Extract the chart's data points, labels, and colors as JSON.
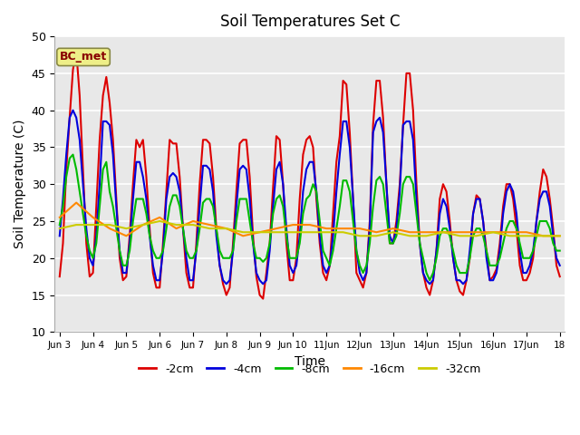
{
  "title": "Soil Temperatures Set C",
  "xlabel": "Time",
  "ylabel": "Soil Temperature (C)",
  "ylim": [
    10,
    50
  ],
  "yticks": [
    10,
    15,
    20,
    25,
    30,
    35,
    40,
    45,
    50
  ],
  "annotation": "BC_met",
  "plot_bg": "#e8e8e8",
  "fig_bg": "#ffffff",
  "legend_entries": [
    "-2cm",
    "-4cm",
    "-8cm",
    "-16cm",
    "-32cm"
  ],
  "legend_colors": [
    "#dd0000",
    "#0000dd",
    "#00bb00",
    "#ff8800",
    "#cccc00"
  ],
  "x_tick_labels": [
    "Jun 3",
    "Jun 4",
    "Jun 5",
    "Jun 6",
    "Jun 7",
    "Jun 8",
    "Jun 9",
    "Jun 10",
    "11Jun",
    "12Jun",
    "13Jun",
    "14Jun",
    "15Jun",
    "16Jun",
    "17Jun",
    "18"
  ],
  "x_tick_positions": [
    0,
    1,
    2,
    3,
    4,
    5,
    6,
    7,
    8,
    9,
    10,
    11,
    12,
    13,
    14,
    15
  ],
  "series": {
    "neg2cm": {
      "color": "#dd0000",
      "lw": 1.5,
      "x": [
        0.0,
        0.1,
        0.2,
        0.3,
        0.4,
        0.5,
        0.6,
        0.7,
        0.8,
        0.9,
        1.0,
        1.1,
        1.2,
        1.3,
        1.4,
        1.5,
        1.6,
        1.7,
        1.8,
        1.9,
        2.0,
        2.1,
        2.2,
        2.3,
        2.4,
        2.5,
        2.6,
        2.7,
        2.8,
        2.9,
        3.0,
        3.1,
        3.2,
        3.3,
        3.4,
        3.5,
        3.6,
        3.7,
        3.8,
        3.9,
        4.0,
        4.1,
        4.2,
        4.3,
        4.4,
        4.5,
        4.6,
        4.7,
        4.8,
        4.9,
        5.0,
        5.1,
        5.2,
        5.3,
        5.4,
        5.5,
        5.6,
        5.7,
        5.8,
        5.9,
        6.0,
        6.1,
        6.2,
        6.3,
        6.4,
        6.5,
        6.6,
        6.7,
        6.8,
        6.9,
        7.0,
        7.1,
        7.2,
        7.3,
        7.4,
        7.5,
        7.6,
        7.7,
        7.8,
        7.9,
        8.0,
        8.1,
        8.2,
        8.3,
        8.4,
        8.5,
        8.6,
        8.7,
        8.8,
        8.9,
        9.0,
        9.1,
        9.2,
        9.3,
        9.4,
        9.5,
        9.6,
        9.7,
        9.8,
        9.9,
        10.0,
        10.1,
        10.2,
        10.3,
        10.4,
        10.5,
        10.6,
        10.7,
        10.8,
        10.9,
        11.0,
        11.1,
        11.2,
        11.3,
        11.4,
        11.5,
        11.6,
        11.7,
        11.8,
        11.9,
        12.0,
        12.1,
        12.2,
        12.3,
        12.4,
        12.5,
        12.6,
        12.7,
        12.8,
        12.9,
        13.0,
        13.1,
        13.2,
        13.3,
        13.4,
        13.5,
        13.6,
        13.7,
        13.8,
        13.9,
        14.0,
        14.1,
        14.2,
        14.3,
        14.4,
        14.5,
        14.6,
        14.7,
        14.8,
        14.9,
        15.0
      ],
      "y": [
        17.5,
        22,
        32,
        39,
        45.5,
        48,
        42,
        32,
        22,
        17.5,
        18,
        27,
        36,
        42,
        44.5,
        41,
        36,
        28,
        20,
        17,
        17.5,
        23,
        30,
        36,
        35,
        36,
        31,
        24,
        18,
        16,
        16,
        22,
        29,
        36,
        35.5,
        35.5,
        31,
        24,
        18,
        16,
        16,
        22,
        30,
        36,
        36,
        35.5,
        31,
        24,
        19,
        16.5,
        15,
        16,
        22,
        29,
        35.5,
        36,
        36,
        31,
        23,
        17.5,
        15,
        14.5,
        18,
        22,
        29.5,
        36.5,
        36,
        30,
        22,
        17,
        17,
        20,
        28,
        34,
        36,
        36.5,
        35,
        28,
        22,
        18,
        17,
        19,
        26,
        33,
        36.5,
        44,
        43.5,
        37,
        28,
        18,
        17,
        16,
        18,
        25,
        38,
        44,
        44,
        39,
        30,
        22,
        22,
        25,
        30,
        38,
        45,
        45,
        40,
        30,
        22,
        18,
        16,
        15,
        17,
        21,
        28,
        30,
        29,
        25,
        20,
        17,
        15.5,
        15,
        17,
        20,
        26,
        28.5,
        28,
        25,
        21,
        17,
        17.5,
        18.5,
        22,
        27,
        30,
        30,
        28,
        24,
        19,
        17,
        17,
        18,
        20,
        25,
        29,
        32,
        31,
        28,
        24,
        19,
        17.5
      ]
    },
    "neg4cm": {
      "color": "#0000dd",
      "lw": 1.5,
      "x": [
        0.0,
        0.1,
        0.2,
        0.3,
        0.4,
        0.5,
        0.6,
        0.7,
        0.8,
        0.9,
        1.0,
        1.1,
        1.2,
        1.3,
        1.4,
        1.5,
        1.6,
        1.7,
        1.8,
        1.9,
        2.0,
        2.1,
        2.2,
        2.3,
        2.4,
        2.5,
        2.6,
        2.7,
        2.8,
        2.9,
        3.0,
        3.1,
        3.2,
        3.3,
        3.4,
        3.5,
        3.6,
        3.7,
        3.8,
        3.9,
        4.0,
        4.1,
        4.2,
        4.3,
        4.4,
        4.5,
        4.6,
        4.7,
        4.8,
        4.9,
        5.0,
        5.1,
        5.2,
        5.3,
        5.4,
        5.5,
        5.6,
        5.7,
        5.8,
        5.9,
        6.0,
        6.1,
        6.2,
        6.3,
        6.4,
        6.5,
        6.6,
        6.7,
        6.8,
        6.9,
        7.0,
        7.1,
        7.2,
        7.3,
        7.4,
        7.5,
        7.6,
        7.7,
        7.8,
        7.9,
        8.0,
        8.1,
        8.2,
        8.3,
        8.4,
        8.5,
        8.6,
        8.7,
        8.8,
        8.9,
        9.0,
        9.1,
        9.2,
        9.3,
        9.4,
        9.5,
        9.6,
        9.7,
        9.8,
        9.9,
        10.0,
        10.1,
        10.2,
        10.3,
        10.4,
        10.5,
        10.6,
        10.7,
        10.8,
        10.9,
        11.0,
        11.1,
        11.2,
        11.3,
        11.4,
        11.5,
        11.6,
        11.7,
        11.8,
        11.9,
        12.0,
        12.1,
        12.2,
        12.3,
        12.4,
        12.5,
        12.6,
        12.7,
        12.8,
        12.9,
        13.0,
        13.1,
        13.2,
        13.3,
        13.4,
        13.5,
        13.6,
        13.7,
        13.8,
        13.9,
        14.0,
        14.1,
        14.2,
        14.3,
        14.4,
        14.5,
        14.6,
        14.7,
        14.8,
        14.9,
        15.0
      ],
      "y": [
        23,
        28,
        34,
        39,
        40,
        39,
        36,
        30,
        24,
        20,
        19,
        23,
        30,
        38.5,
        38.5,
        38,
        34,
        27,
        21,
        18,
        18,
        22,
        28,
        33,
        33,
        31,
        28,
        23,
        19,
        17,
        17,
        21,
        28,
        31,
        31.5,
        31,
        29,
        24,
        20,
        17,
        17,
        21,
        27,
        32.5,
        32.5,
        32,
        29,
        23,
        19,
        17,
        16.5,
        17,
        21,
        27,
        32,
        32.5,
        32,
        28,
        22,
        18,
        17,
        16.5,
        17,
        21,
        27,
        32,
        33,
        30,
        24,
        19,
        18,
        19,
        23,
        29,
        32,
        33,
        33,
        29,
        23,
        19,
        18,
        19,
        23,
        29,
        34,
        38.5,
        38.5,
        35,
        28,
        21,
        18,
        17,
        18,
        24,
        37,
        38.5,
        39,
        37,
        30,
        23,
        22,
        24,
        29,
        38,
        38.5,
        38.5,
        36,
        28,
        22,
        18,
        17,
        16.5,
        17,
        21,
        26,
        28,
        27,
        24,
        20,
        17,
        17,
        16.5,
        17,
        21,
        26,
        28,
        28,
        25,
        20,
        17,
        17,
        18,
        21,
        26,
        29,
        30,
        29,
        26,
        21,
        18,
        18,
        19,
        21,
        25,
        28,
        29,
        29,
        27,
        23,
        20,
        19
      ]
    },
    "neg8cm": {
      "color": "#00bb00",
      "lw": 1.5,
      "x": [
        0.0,
        0.1,
        0.2,
        0.3,
        0.4,
        0.5,
        0.6,
        0.7,
        0.8,
        0.9,
        1.0,
        1.1,
        1.2,
        1.3,
        1.4,
        1.5,
        1.6,
        1.7,
        1.8,
        1.9,
        2.0,
        2.1,
        2.2,
        2.3,
        2.4,
        2.5,
        2.6,
        2.7,
        2.8,
        2.9,
        3.0,
        3.1,
        3.2,
        3.3,
        3.4,
        3.5,
        3.6,
        3.7,
        3.8,
        3.9,
        4.0,
        4.1,
        4.2,
        4.3,
        4.4,
        4.5,
        4.6,
        4.7,
        4.8,
        4.9,
        5.0,
        5.1,
        5.2,
        5.3,
        5.4,
        5.5,
        5.6,
        5.7,
        5.8,
        5.9,
        6.0,
        6.1,
        6.2,
        6.3,
        6.4,
        6.5,
        6.6,
        6.7,
        6.8,
        6.9,
        7.0,
        7.1,
        7.2,
        7.3,
        7.4,
        7.5,
        7.6,
        7.7,
        7.8,
        7.9,
        8.0,
        8.1,
        8.2,
        8.3,
        8.4,
        8.5,
        8.6,
        8.7,
        8.8,
        8.9,
        9.0,
        9.1,
        9.2,
        9.3,
        9.4,
        9.5,
        9.6,
        9.7,
        9.8,
        9.9,
        10.0,
        10.1,
        10.2,
        10.3,
        10.4,
        10.5,
        10.6,
        10.7,
        10.8,
        10.9,
        11.0,
        11.1,
        11.2,
        11.3,
        11.4,
        11.5,
        11.6,
        11.7,
        11.8,
        11.9,
        12.0,
        12.1,
        12.2,
        12.3,
        12.4,
        12.5,
        12.6,
        12.7,
        12.8,
        12.9,
        13.0,
        13.1,
        13.2,
        13.3,
        13.4,
        13.5,
        13.6,
        13.7,
        13.8,
        13.9,
        14.0,
        14.1,
        14.2,
        14.3,
        14.4,
        14.5,
        14.6,
        14.7,
        14.8,
        14.9,
        15.0
      ],
      "y": [
        24.5,
        27,
        31,
        33.5,
        34,
        32,
        29,
        26,
        23,
        21,
        20,
        22,
        27,
        32,
        33,
        29,
        27,
        24,
        21,
        19,
        19,
        21,
        25,
        28,
        28,
        28,
        26,
        23,
        21,
        20,
        20,
        21,
        24,
        27,
        28.5,
        28.5,
        27,
        24,
        21,
        20,
        20,
        21,
        24,
        27.5,
        28,
        28,
        27,
        24,
        21,
        20,
        20,
        20,
        21,
        25,
        28,
        28,
        28,
        25,
        22,
        20,
        20,
        19.5,
        20,
        22,
        26,
        28,
        28.5,
        27,
        23,
        20,
        20,
        20,
        22,
        26,
        28,
        28.5,
        30,
        29,
        25,
        21,
        20,
        19,
        21,
        24,
        27,
        30.5,
        30.5,
        29,
        25,
        21,
        19,
        18,
        19,
        22,
        27,
        30.5,
        31,
        30,
        26,
        22,
        22,
        23,
        26,
        30,
        31,
        31,
        30,
        26,
        22,
        20,
        18,
        17,
        18,
        20,
        23,
        24,
        24,
        23,
        21,
        19,
        18,
        18,
        18,
        20,
        23,
        24,
        24,
        23,
        21,
        19,
        19,
        19,
        20,
        22,
        24,
        25,
        25,
        24,
        22,
        20,
        20,
        20,
        21,
        23,
        25,
        25,
        25,
        24,
        22,
        21,
        21
      ]
    },
    "neg16cm": {
      "color": "#ff8800",
      "lw": 1.5,
      "x": [
        0.0,
        0.5,
        1.0,
        1.5,
        2.0,
        2.5,
        3.0,
        3.5,
        4.0,
        4.5,
        5.0,
        5.5,
        6.0,
        6.5,
        7.0,
        7.5,
        8.0,
        8.5,
        9.0,
        9.5,
        10.0,
        10.5,
        11.0,
        11.5,
        12.0,
        12.5,
        13.0,
        13.5,
        14.0,
        14.5,
        15.0
      ],
      "y": [
        25.5,
        27.5,
        25.5,
        24,
        23,
        24.5,
        25.5,
        24,
        25,
        24.5,
        24,
        23,
        23.5,
        24,
        24.5,
        24.5,
        24,
        24,
        24,
        23.5,
        24,
        23.5,
        23.5,
        23.5,
        23.5,
        23.5,
        23.5,
        23.5,
        23.5,
        23,
        23
      ]
    },
    "neg32cm": {
      "color": "#cccc00",
      "lw": 1.5,
      "x": [
        0.0,
        0.5,
        1.0,
        1.5,
        2.0,
        2.5,
        3.0,
        3.5,
        4.0,
        4.5,
        5.0,
        5.5,
        6.0,
        6.5,
        7.0,
        7.5,
        8.0,
        8.5,
        9.0,
        9.5,
        10.0,
        10.5,
        11.0,
        11.5,
        12.0,
        12.5,
        13.0,
        13.5,
        14.0,
        14.5,
        15.0
      ],
      "y": [
        24,
        24.5,
        24.5,
        24.5,
        24,
        24.5,
        25,
        24.5,
        24.5,
        24,
        24,
        23.5,
        23.5,
        23.5,
        23.5,
        23.5,
        23.5,
        23.5,
        23,
        23,
        23.5,
        23,
        23,
        23.5,
        23,
        23,
        23.5,
        23,
        23,
        23,
        23
      ]
    }
  }
}
